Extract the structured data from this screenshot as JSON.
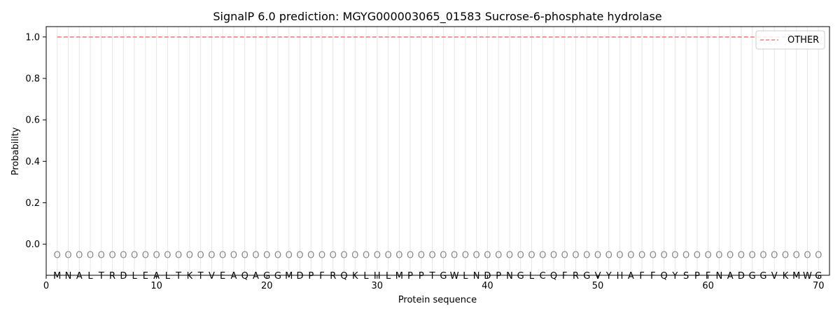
{
  "chart_data": {
    "type": "line",
    "title": "SignalP 6.0 prediction: MGYG000003065_01583 Sucrose-6-phosphate hydrolase",
    "xlabel": "Protein sequence",
    "ylabel": "Probability",
    "xlim": [
      0,
      71
    ],
    "ylim": [
      -0.15,
      1.05
    ],
    "xticks": [
      0,
      10,
      20,
      30,
      40,
      50,
      60,
      70
    ],
    "yticks": [
      0.0,
      0.2,
      0.4,
      0.6,
      0.8,
      1.0
    ],
    "grid": "vertical lines at each residue",
    "legend_position": "top-right",
    "sequence": [
      "M",
      "N",
      "A",
      "L",
      "T",
      "R",
      "D",
      "L",
      "E",
      "A",
      "L",
      "T",
      "K",
      "T",
      "V",
      "E",
      "A",
      "Q",
      "A",
      "G",
      "G",
      "M",
      "D",
      "P",
      "F",
      "R",
      "Q",
      "K",
      "L",
      "H",
      "L",
      "M",
      "P",
      "P",
      "T",
      "G",
      "W",
      "L",
      "N",
      "D",
      "P",
      "N",
      "G",
      "L",
      "C",
      "Q",
      "F",
      "R",
      "G",
      "V",
      "Y",
      "H",
      "A",
      "F",
      "F",
      "Q",
      "Y",
      "S",
      "P",
      "F",
      "N",
      "A",
      "D",
      "G",
      "G",
      "V",
      "K",
      "M",
      "W",
      "G"
    ],
    "region_label": "O",
    "series": [
      {
        "name": "OTHER",
        "color": "#f08080",
        "style": "dashed",
        "x_start": 1,
        "x_end": 70,
        "value": 1.0
      }
    ]
  }
}
